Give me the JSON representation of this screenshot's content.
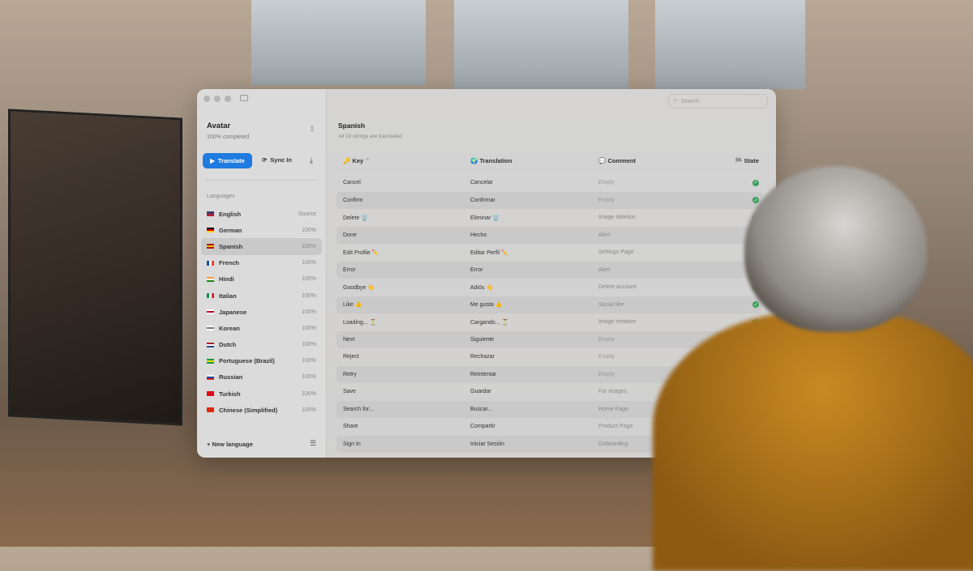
{
  "sidebar": {
    "project": "Avatar",
    "completed": "100% completed",
    "translate": "Translate",
    "sync": "Sync In",
    "languages_header": "Languages",
    "new_language": "New language",
    "languages": [
      {
        "name": "English",
        "value": "Source",
        "flag": [
          "#3c3b6e",
          "#b22234"
        ]
      },
      {
        "name": "German",
        "value": "100%",
        "flag": [
          "#000",
          "#dd0000",
          "#ffce00"
        ]
      },
      {
        "name": "Spanish",
        "value": "100%",
        "flag": [
          "#aa151b",
          "#f1bf00",
          "#aa151b"
        ],
        "selected": true
      },
      {
        "name": "French",
        "value": "100%",
        "flag": [
          "#0055a4",
          "#fff",
          "#ef4135"
        ],
        "vertical": true
      },
      {
        "name": "Hindi",
        "value": "100%",
        "flag": [
          "#ff9933",
          "#fff",
          "#138808"
        ]
      },
      {
        "name": "Italian",
        "value": "100%",
        "flag": [
          "#009246",
          "#fff",
          "#ce2b37"
        ],
        "vertical": true
      },
      {
        "name": "Japanese",
        "value": "100%",
        "flag": [
          "#fff",
          "#bc002d",
          "#fff"
        ]
      },
      {
        "name": "Korean",
        "value": "100%",
        "flag": [
          "#fff",
          "#777",
          "#fff"
        ]
      },
      {
        "name": "Dutch",
        "value": "100%",
        "flag": [
          "#ae1c28",
          "#fff",
          "#21468b"
        ]
      },
      {
        "name": "Portuguese (Brazil)",
        "value": "100%",
        "flag": [
          "#009c3b",
          "#ffdf00",
          "#009c3b"
        ]
      },
      {
        "name": "Russian",
        "value": "100%",
        "flag": [
          "#fff",
          "#0039a6",
          "#d52b1e"
        ]
      },
      {
        "name": "Turkish",
        "value": "100%",
        "flag": [
          "#e30a17",
          "#e30a17"
        ]
      },
      {
        "name": "Chinese (Simplified)",
        "value": "100%",
        "flag": [
          "#de2910",
          "#de2910"
        ]
      }
    ]
  },
  "main": {
    "search_placeholder": "Search",
    "title": "Spanish",
    "subtitle": "All 19 strings are translated",
    "columns": {
      "key": "Key",
      "translation": "Translation",
      "comment": "Comment",
      "state": "State"
    },
    "rows": [
      {
        "key": "Cancel",
        "translation": "Cancelar",
        "comment": "Empty"
      },
      {
        "key": "Confirm",
        "translation": "Confirmar",
        "comment": "Empty"
      },
      {
        "key": "Delete 🗑️",
        "translation": "Eliminar 🗑️",
        "comment": "Image deletion"
      },
      {
        "key": "Done",
        "translation": "Hecho",
        "comment": "Alert"
      },
      {
        "key": "Edit Profile ✏️",
        "translation": "Editar Perfil ✏️",
        "comment": "Settings Page"
      },
      {
        "key": "Error",
        "translation": "Error",
        "comment": "Alert"
      },
      {
        "key": "Goodbye 👋",
        "translation": "Adiós 👋",
        "comment": "Delete account"
      },
      {
        "key": "Like 👍",
        "translation": "Me gusta 👍",
        "comment": "Social like"
      },
      {
        "key": "Loading... ⏳",
        "translation": "Cargando... ⏳",
        "comment": "Image creation"
      },
      {
        "key": "Next",
        "translation": "Siguiente",
        "comment": "Empty"
      },
      {
        "key": "Reject",
        "translation": "Rechazar",
        "comment": "Empty"
      },
      {
        "key": "Retry",
        "translation": "Reintentar",
        "comment": "Empty"
      },
      {
        "key": "Save",
        "translation": "Guardar",
        "comment": "For images"
      },
      {
        "key": "Search for...",
        "translation": "Buscar...",
        "comment": "Home Page"
      },
      {
        "key": "Share",
        "translation": "Compartir",
        "comment": "Product Page"
      },
      {
        "key": "Sign In",
        "translation": "Iniciar Sesión",
        "comment": "Onboarding"
      }
    ]
  },
  "colors": {
    "accent": "#1f7be0",
    "state_ok": "#3aa35b"
  }
}
